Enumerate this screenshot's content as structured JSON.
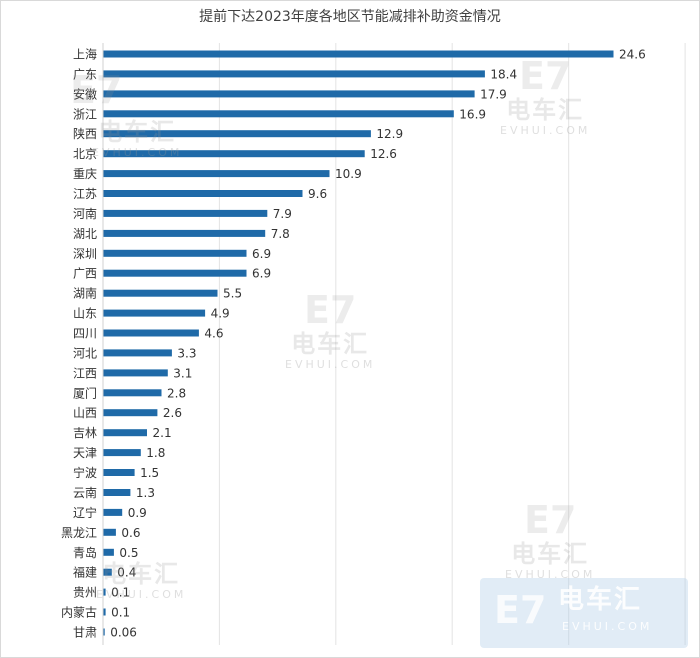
{
  "chart_data": {
    "type": "bar",
    "orientation": "horizontal",
    "title": "提前下达2023年度各地区节能减排补助资金情况",
    "xlabel": "",
    "ylabel": "",
    "xlim": [
      0,
      26
    ],
    "grid": true,
    "bar_color": "#1f6aa8",
    "categories": [
      "上海",
      "广东",
      "安徽",
      "浙江",
      "陕西",
      "北京",
      "重庆",
      "江苏",
      "河南",
      "湖北",
      "深圳",
      "广西",
      "湖南",
      "山东",
      "四川",
      "河北",
      "江西",
      "厦门",
      "山西",
      "吉林",
      "天津",
      "宁波",
      "云南",
      "辽宁",
      "黑龙江",
      "青岛",
      "福建",
      "贵州",
      "内蒙古",
      "甘肃"
    ],
    "values": [
      24.6,
      18.4,
      17.9,
      16.9,
      12.9,
      12.6,
      10.9,
      9.6,
      7.9,
      7.8,
      6.9,
      6.9,
      5.5,
      4.9,
      4.6,
      3.3,
      3.1,
      2.8,
      2.6,
      2.1,
      1.8,
      1.5,
      1.3,
      0.9,
      0.6,
      0.5,
      0.4,
      0.1,
      0.1,
      0.06
    ],
    "value_labels": [
      "24.6",
      "18.4",
      "17.9",
      "16.9",
      "12.9",
      "12.6",
      "10.9",
      "9.6",
      "7.9",
      "7.8",
      "6.9",
      "6.9",
      "5.5",
      "4.9",
      "4.6",
      "3.3",
      "3.1",
      "2.8",
      "2.6",
      "2.1",
      "1.8",
      "1.5",
      "1.3",
      "0.9",
      "0.6",
      "0.5",
      "0.4",
      "0.1",
      "0.1",
      "0.06"
    ]
  },
  "watermark": {
    "logo_glyph": "E7",
    "name_cn": "电车汇",
    "domain": "EVHUI.COM"
  }
}
